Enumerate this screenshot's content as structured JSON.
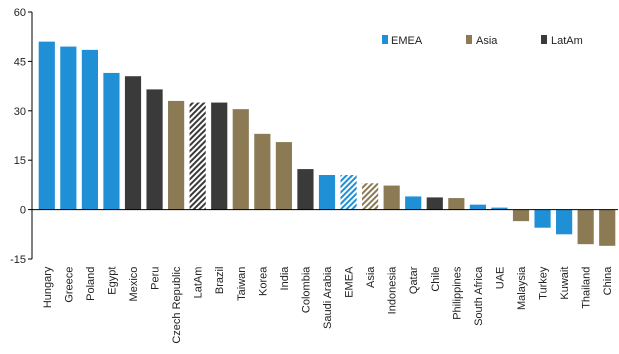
{
  "chart_data": {
    "type": "bar",
    "title": "",
    "xlabel": "",
    "ylabel": "",
    "ylim": [
      -15,
      60
    ],
    "yticks": [
      -15,
      0,
      15,
      30,
      45,
      60
    ],
    "grid": false,
    "legend_position": "top-right",
    "legend": [
      {
        "label": "EMEA",
        "color": "#1f8fd6"
      },
      {
        "label": "Asia",
        "color": "#8c7a55"
      },
      {
        "label": "LatAm",
        "color": "#3a3a3a"
      }
    ],
    "categories": [
      "Hungary",
      "Greece",
      "Poland",
      "Egypt",
      "Mexico",
      "Peru",
      "Czech Republic",
      "LatAm",
      "Brazil",
      "Taiwan",
      "Korea",
      "India",
      "Colombia",
      "Saudi Arabia",
      "EMEA",
      "Asia",
      "Indonesia",
      "Qatar",
      "Chile",
      "Philippines",
      "South Africa",
      "UAE",
      "Malaysia",
      "Turkey",
      "Kuwait",
      "Thailand",
      "China"
    ],
    "values": [
      51,
      49.5,
      48.5,
      41.5,
      40.5,
      36.5,
      33,
      32.5,
      32.5,
      30.5,
      23,
      20.5,
      12.3,
      10.5,
      10.5,
      8,
      7.3,
      4,
      3.7,
      3.5,
      1.5,
      0.6,
      -3.5,
      -5.5,
      -7.5,
      -10.5,
      -11
    ],
    "groups": [
      "EMEA",
      "EMEA",
      "EMEA",
      "EMEA",
      "LatAm",
      "LatAm",
      "Asia",
      "LatAm",
      "LatAm",
      "Asia",
      "Asia",
      "Asia",
      "LatAm",
      "EMEA",
      "EMEA",
      "Asia",
      "Asia",
      "EMEA",
      "LatAm",
      "Asia",
      "EMEA",
      "EMEA",
      "Asia",
      "EMEA",
      "EMEA",
      "Asia",
      "Asia"
    ],
    "hatched": [
      false,
      false,
      false,
      false,
      false,
      false,
      false,
      true,
      false,
      false,
      false,
      false,
      false,
      false,
      true,
      true,
      false,
      false,
      false,
      false,
      false,
      false,
      false,
      false,
      false,
      false,
      false
    ]
  }
}
